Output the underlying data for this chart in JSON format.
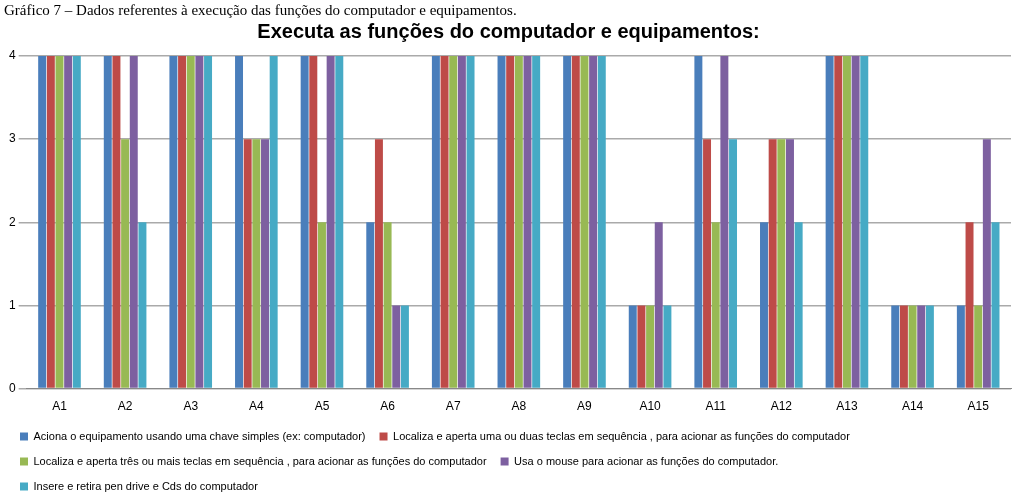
{
  "chart_data": {
    "type": "bar",
    "title": "Executa as funções do computador e equipamentos:",
    "annotations": [
      "Gráfico 7 – Dados referentes à execução das funções do computador e equipamentos."
    ],
    "categories": [
      "A1",
      "A2",
      "A3",
      "A4",
      "A5",
      "A6",
      "A7",
      "A8",
      "A9",
      "A10",
      "A11",
      "A12",
      "A13",
      "A14",
      "A15"
    ],
    "series": [
      {
        "name": "Aciona o equipamento usando uma chave simples (ex: computador)",
        "color": "#4a7ebb",
        "values": [
          4,
          4,
          4,
          4,
          4,
          2,
          4,
          4,
          4,
          1,
          4,
          2,
          4,
          1,
          1
        ]
      },
      {
        "name": "Localiza e aperta uma ou duas teclas em sequência , para acionar as funções do computador",
        "color": "#be4b48",
        "values": [
          4,
          4,
          4,
          3,
          4,
          3,
          4,
          4,
          4,
          1,
          3,
          3,
          4,
          1,
          2
        ]
      },
      {
        "name": "Localiza e aperta três ou mais teclas em sequência , para acionar as funções do computador",
        "color": "#98b954",
        "values": [
          4,
          3,
          4,
          3,
          2,
          2,
          4,
          4,
          4,
          1,
          2,
          3,
          4,
          1,
          1
        ]
      },
      {
        "name": "Usa o mouse para acionar as funções do computador.",
        "color": "#7d60a0",
        "values": [
          4,
          4,
          4,
          3,
          4,
          1,
          4,
          4,
          4,
          2,
          4,
          3,
          4,
          1,
          3
        ]
      },
      {
        "name": "Insere e retira pen drive e Cds do computador",
        "color": "#46aac5",
        "values": [
          4,
          2,
          4,
          4,
          4,
          1,
          4,
          4,
          4,
          1,
          3,
          2,
          4,
          1,
          2
        ]
      }
    ],
    "ylim": [
      0,
      4
    ],
    "yticks": [
      0,
      1,
      2,
      3,
      4
    ],
    "grid": "y",
    "legend": "bottom"
  }
}
